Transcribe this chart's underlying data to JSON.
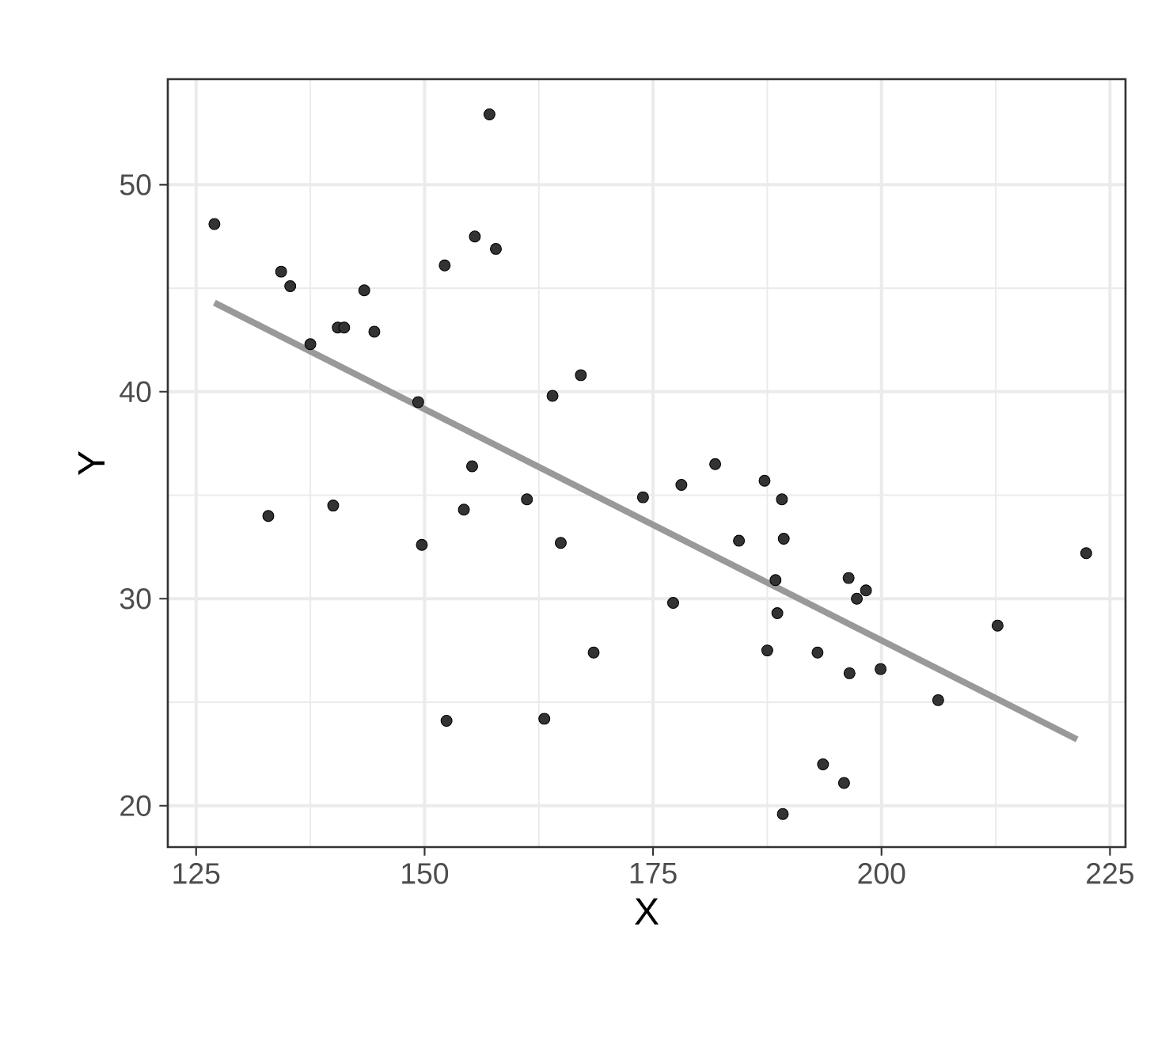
{
  "chart_data": {
    "type": "scatter",
    "xlabel": "X",
    "ylabel": "Y",
    "xlim": [
      121.9,
      226.7
    ],
    "ylim": [
      18.0,
      55.1
    ],
    "xticks": [
      125,
      150,
      175,
      200,
      225
    ],
    "yticks": [
      20,
      30,
      40,
      50
    ],
    "grid": true,
    "series": [
      {
        "marker": "circle",
        "color": "#333333",
        "x": [
          127.0,
          132.9,
          134.3,
          135.3,
          137.5,
          140.0,
          140.5,
          141.2,
          143.4,
          144.5,
          149.3,
          149.7,
          152.2,
          152.4,
          154.3,
          155.2,
          155.5,
          157.1,
          157.8,
          161.2,
          163.1,
          164.0,
          164.9,
          167.1,
          168.5,
          173.9,
          177.2,
          178.1,
          181.8,
          184.4,
          187.2,
          187.5,
          188.4,
          188.6,
          189.1,
          189.2,
          189.3,
          193.0,
          193.6,
          195.9,
          196.4,
          196.5,
          197.3,
          198.3,
          199.9,
          206.2,
          212.7,
          222.4
        ],
        "values": [
          48.1,
          34.0,
          45.8,
          45.1,
          42.3,
          34.5,
          43.1,
          43.1,
          44.9,
          42.9,
          39.5,
          32.6,
          46.1,
          24.1,
          34.3,
          36.4,
          47.5,
          53.4,
          46.9,
          34.8,
          24.2,
          39.8,
          32.7,
          40.8,
          27.4,
          34.9,
          29.8,
          35.5,
          36.5,
          32.8,
          35.7,
          27.5,
          30.9,
          29.3,
          34.8,
          19.6,
          32.9,
          27.4,
          22.0,
          21.1,
          31.0,
          26.4,
          30.0,
          30.4,
          26.6,
          25.1,
          28.7,
          32.2
        ]
      },
      {
        "type": "line",
        "marker": "none",
        "color": "#999999",
        "x": [
          127.0,
          221.4
        ],
        "values": [
          44.3,
          23.2
        ]
      }
    ]
  }
}
